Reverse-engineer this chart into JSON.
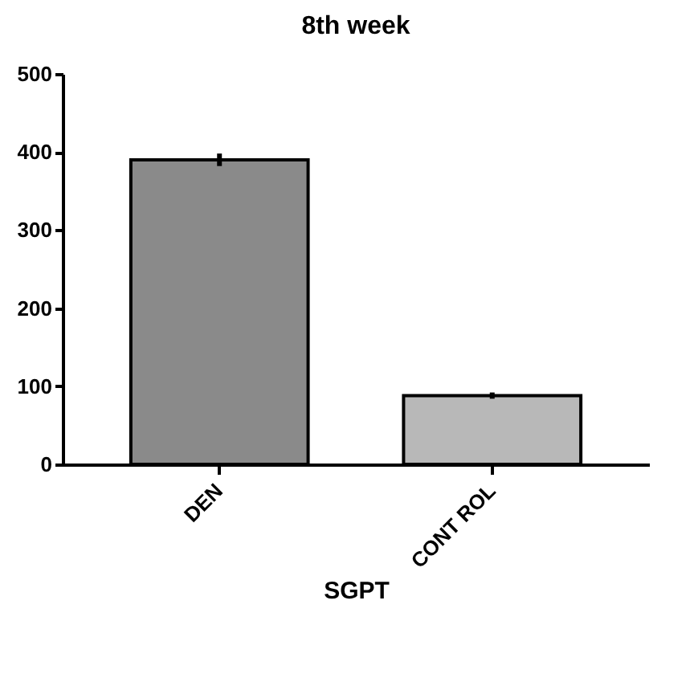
{
  "chart_data": {
    "type": "bar",
    "title": "8th week",
    "xlabel": "SGPT",
    "categories": [
      "DEN",
      "CONT ROL"
    ],
    "values": [
      390,
      88
    ],
    "errors": [
      8,
      4
    ],
    "colors": [
      "#8a8a8a",
      "#b8b8b8"
    ],
    "ylim": [
      0,
      500
    ],
    "yticks": [
      0,
      100,
      200,
      300,
      400,
      500
    ],
    "grid": false
  }
}
